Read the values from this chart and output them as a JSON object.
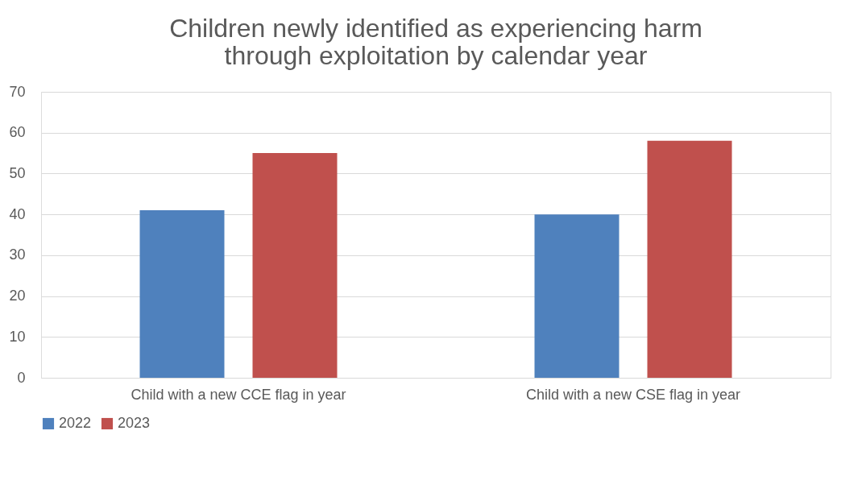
{
  "chart_data": {
    "type": "bar",
    "title": "Children newly identified as experiencing harm through exploitation by calendar year",
    "categories": [
      "Child with a new CCE flag in year",
      "Child with a new CSE flag in year"
    ],
    "series": [
      {
        "name": "2022",
        "color": "#4f81bd",
        "values": [
          41,
          40
        ]
      },
      {
        "name": "2023",
        "color": "#c0504d",
        "values": [
          55,
          58
        ]
      }
    ],
    "ylim": [
      0,
      70
    ],
    "yticks": [
      0,
      10,
      20,
      30,
      40,
      50,
      60,
      70
    ],
    "grid": "y",
    "legend": "bottom"
  }
}
